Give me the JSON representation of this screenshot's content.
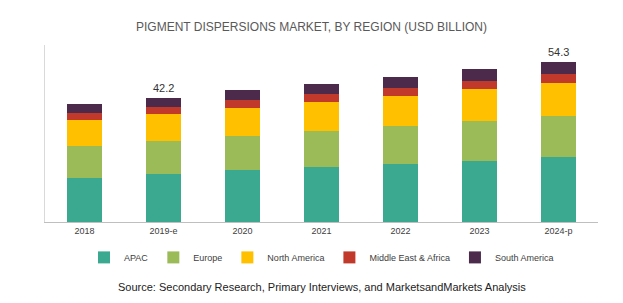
{
  "chart_data": {
    "type": "bar",
    "title": "PIGMENT DISPERSIONS MARKET, BY REGION (USD BILLION)",
    "categories": [
      "2018",
      "2019-e",
      "2020",
      "2021",
      "2022",
      "2023",
      "2024-p"
    ],
    "series": [
      {
        "name": "APAC",
        "color": "#3aa98f",
        "values": [
          14.8,
          16.2,
          17.5,
          18.5,
          19.5,
          20.8,
          22.2
        ]
      },
      {
        "name": "Europe",
        "color": "#9bbb59",
        "values": [
          10.8,
          11.4,
          11.8,
          12.4,
          13.1,
          13.5,
          13.9
        ]
      },
      {
        "name": "North America",
        "color": "#ffc000",
        "values": [
          9.1,
          9.1,
          9.4,
          9.8,
          10.1,
          10.7,
          11.1
        ]
      },
      {
        "name": "Middle East & Africa",
        "color": "#c0392b",
        "values": [
          2.4,
          2.4,
          2.6,
          2.7,
          2.8,
          2.9,
          3.0
        ]
      },
      {
        "name": "South America",
        "color": "#4b2a4b",
        "values": [
          3.0,
          3.1,
          3.3,
          3.4,
          3.6,
          3.8,
          4.1
        ]
      }
    ],
    "annotations": [
      {
        "category": "2019-e",
        "text": "42.2"
      },
      {
        "category": "2024-p",
        "text": "54.3"
      }
    ],
    "source": "Source: Secondary Research, Primary Interviews, and MarketsandMarkets Analysis",
    "ylim": [
      0,
      60
    ],
    "stacked": true,
    "grid": false,
    "legend": "bottom",
    "tick_labels": "x"
  }
}
